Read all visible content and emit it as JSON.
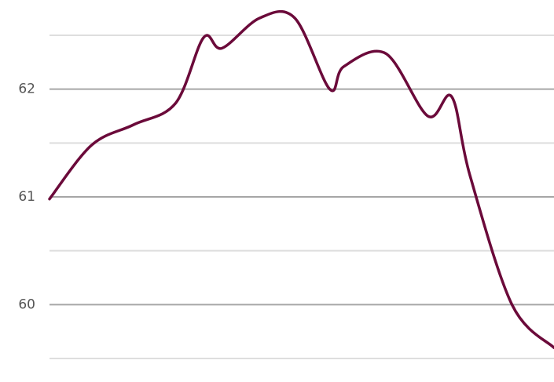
{
  "chart_data": {
    "type": "line",
    "title": "",
    "xlabel": "",
    "ylabel": "",
    "ylim": [
      59.5,
      62.5
    ],
    "xlim": [
      0,
      36
    ],
    "major_ticks": [
      60,
      61,
      62
    ],
    "minor_ticks": [
      59.5,
      60.5,
      61.5,
      62.5
    ],
    "y_tick_labels": [
      "60",
      "61",
      "62"
    ],
    "grid": true,
    "legend": "none",
    "colors": {
      "line": "#6b0a3a",
      "major_grid": "#a6a6a6",
      "minor_grid": "#dedede",
      "tick_label": "#555555"
    },
    "series": [
      {
        "values": [
          {
            "x": 0,
            "y": 60.98
          },
          {
            "x": 3,
            "y": 61.48
          },
          {
            "x": 6,
            "y": 61.67
          },
          {
            "x": 9,
            "y": 61.87
          },
          {
            "x": 11,
            "y": 62.48
          },
          {
            "x": 12.3,
            "y": 62.38
          },
          {
            "x": 15,
            "y": 62.66
          },
          {
            "x": 17.5,
            "y": 62.66
          },
          {
            "x": 20,
            "y": 62.0
          },
          {
            "x": 21,
            "y": 62.21
          },
          {
            "x": 24,
            "y": 62.33
          },
          {
            "x": 27,
            "y": 61.75
          },
          {
            "x": 28.7,
            "y": 61.93
          },
          {
            "x": 30,
            "y": 61.2
          },
          {
            "x": 33,
            "y": 60.0
          },
          {
            "x": 36,
            "y": 59.6
          }
        ]
      }
    ]
  }
}
